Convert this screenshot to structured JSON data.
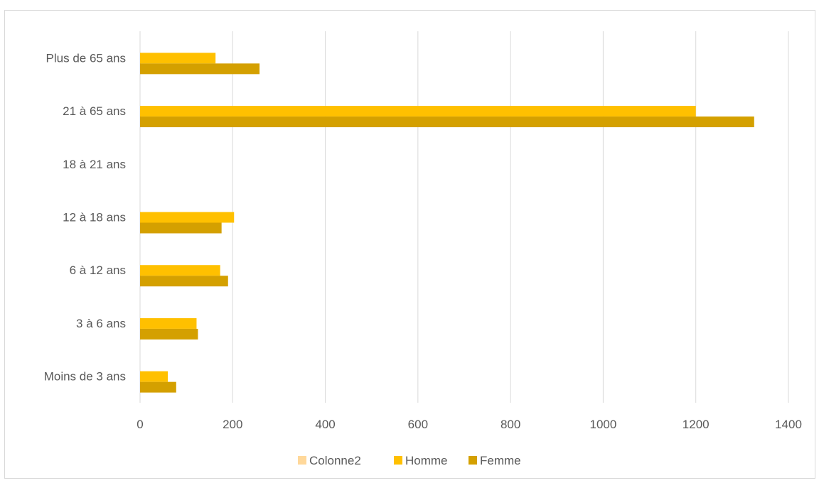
{
  "chart_data": {
    "type": "bar",
    "orientation": "horizontal",
    "title": "",
    "xlabel": "",
    "ylabel": "",
    "categories": [
      "Moins de 3 ans",
      "3 à 6 ans",
      "6 à 12 ans",
      "12 à 18 ans",
      "18 à 21 ans",
      "21 à 65 ans",
      "Plus de 65 ans"
    ],
    "series": [
      {
        "name": "Colonne2",
        "color": "#FFD89A",
        "values": [
          null,
          null,
          null,
          null,
          null,
          null,
          null
        ]
      },
      {
        "name": "Homme",
        "color": "#FFC000",
        "values": [
          60,
          122,
          173,
          203,
          null,
          1200,
          163
        ]
      },
      {
        "name": "Femme",
        "color": "#D4A000",
        "values": [
          78,
          125,
          190,
          176,
          null,
          1326,
          258
        ]
      }
    ],
    "xlim": [
      0,
      1400
    ],
    "xticks": [
      "0",
      "200",
      "400",
      "600",
      "800",
      "1000",
      "1200",
      "1400"
    ],
    "grid": true,
    "legend": "bottom"
  }
}
